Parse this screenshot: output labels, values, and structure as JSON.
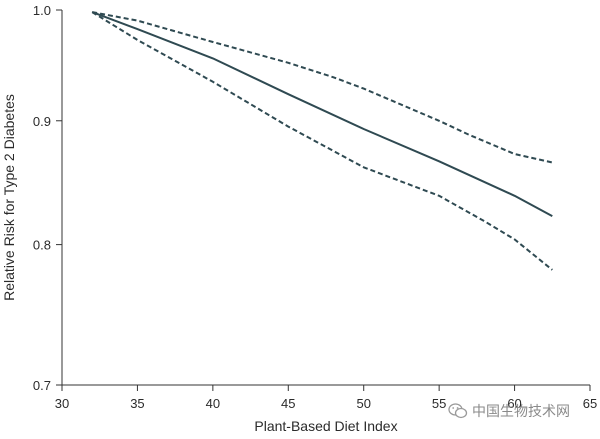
{
  "chart_data": {
    "type": "line",
    "xlabel": "Plant-Based Diet Index",
    "ylabel": "Relative Risk for Type 2 Diabetes",
    "xlim": [
      30,
      65
    ],
    "ylim": [
      0.7,
      1.0
    ],
    "y_scale": "log",
    "x_ticks": [
      30,
      35,
      40,
      45,
      50,
      55,
      60,
      65
    ],
    "y_ticks": [
      0.7,
      0.8,
      0.9,
      1.0
    ],
    "y_tick_labels": [
      "0.7",
      "0.8",
      "0.9",
      "1.0"
    ],
    "grid": false,
    "series": [
      {
        "style": "solid",
        "color": "#2f4a52",
        "x": [
          32,
          35,
          40,
          45,
          50,
          55,
          60,
          62.5
        ],
        "y": [
          0.998,
          0.982,
          0.955,
          0.923,
          0.893,
          0.866,
          0.838,
          0.822
        ]
      },
      {
        "style": "dashed",
        "color": "#2f4a52",
        "x": [
          32,
          35,
          40,
          45,
          48,
          50,
          55,
          57,
          60,
          62.5
        ],
        "y": [
          0.998,
          0.99,
          0.97,
          0.951,
          0.938,
          0.928,
          0.9,
          0.888,
          0.872,
          0.865
        ]
      },
      {
        "style": "dashed",
        "color": "#2f4a52",
        "x": [
          32,
          35,
          40,
          45,
          50,
          55,
          58,
          60,
          62.5
        ],
        "y": [
          0.998,
          0.972,
          0.934,
          0.895,
          0.861,
          0.838,
          0.818,
          0.804,
          0.781
        ]
      }
    ]
  },
  "watermark": {
    "text": "中国生物技术网",
    "icon": "wechat-logo-icon"
  }
}
